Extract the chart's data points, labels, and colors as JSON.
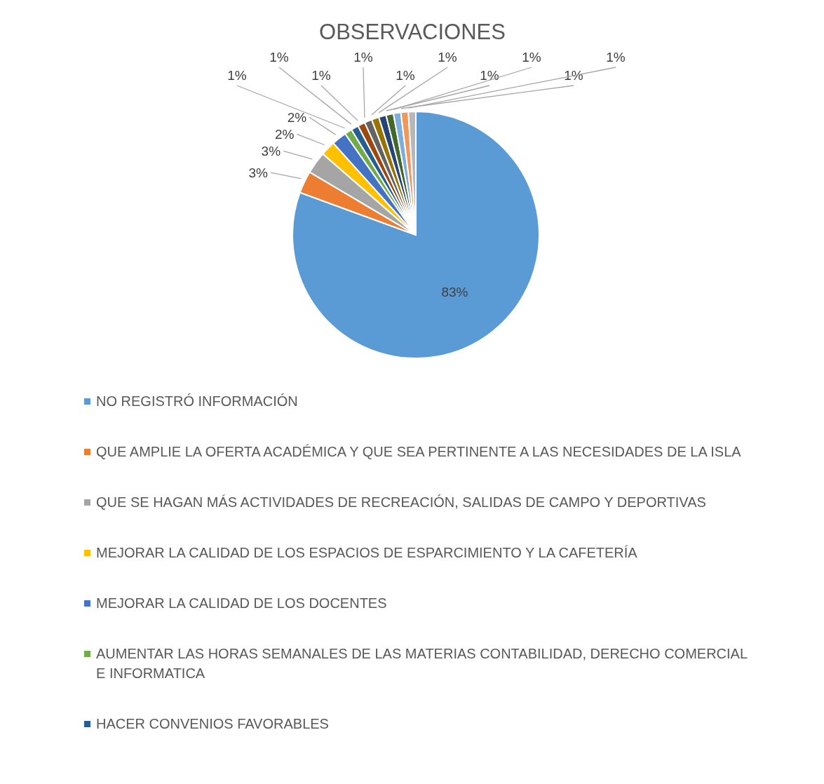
{
  "chart_data": {
    "type": "pie",
    "title": "OBSERVACIONES",
    "categories": [
      "NO REGISTRÓ INFORMACIÓN",
      "QUE AMPLIE LA OFERTA ACADÉMICA Y QUE SEA PERTINENTE A LAS NECESIDADES DE LA ISLA",
      "QUE SE HAGAN MÁS ACTIVIDADES DE RECREACIÓN, SALIDAS DE CAMPO Y DEPORTIVAS",
      "MEJORAR LA CALIDAD DE LOS ESPACIOS DE ESPARCIMIENTO Y LA CAFETERÍA",
      "MEJORAR LA CALIDAD DE LOS DOCENTES",
      "AUMENTAR LAS HORAS SEMANALES DE LAS MATERIAS CONTABILIDAD, DERECHO COMERCIAL E INFORMATICA",
      "HACER CONVENIOS FAVORABLES",
      null,
      null,
      null,
      null,
      null,
      null,
      null,
      null
    ],
    "values": [
      83,
      3,
      3,
      2,
      2,
      1,
      1,
      1,
      1,
      1,
      1,
      1,
      1,
      1,
      1
    ],
    "value_labels": [
      "83%",
      "3%",
      "3%",
      "2%",
      "2%",
      "1%",
      "1%",
      "1%",
      "1%",
      "1%",
      "1%",
      "1%",
      "1%",
      "1%",
      "1%"
    ],
    "colors": [
      "#5b9bd5",
      "#ed7d31",
      "#a5a5a5",
      "#ffc000",
      "#4472c4",
      "#70ad47",
      "#255e91",
      "#9e480e",
      "#636363",
      "#997300",
      "#264478",
      "#43682b",
      "#7cafdd",
      "#f1975a",
      "#b7b7b7"
    ],
    "legend": "bottom"
  }
}
